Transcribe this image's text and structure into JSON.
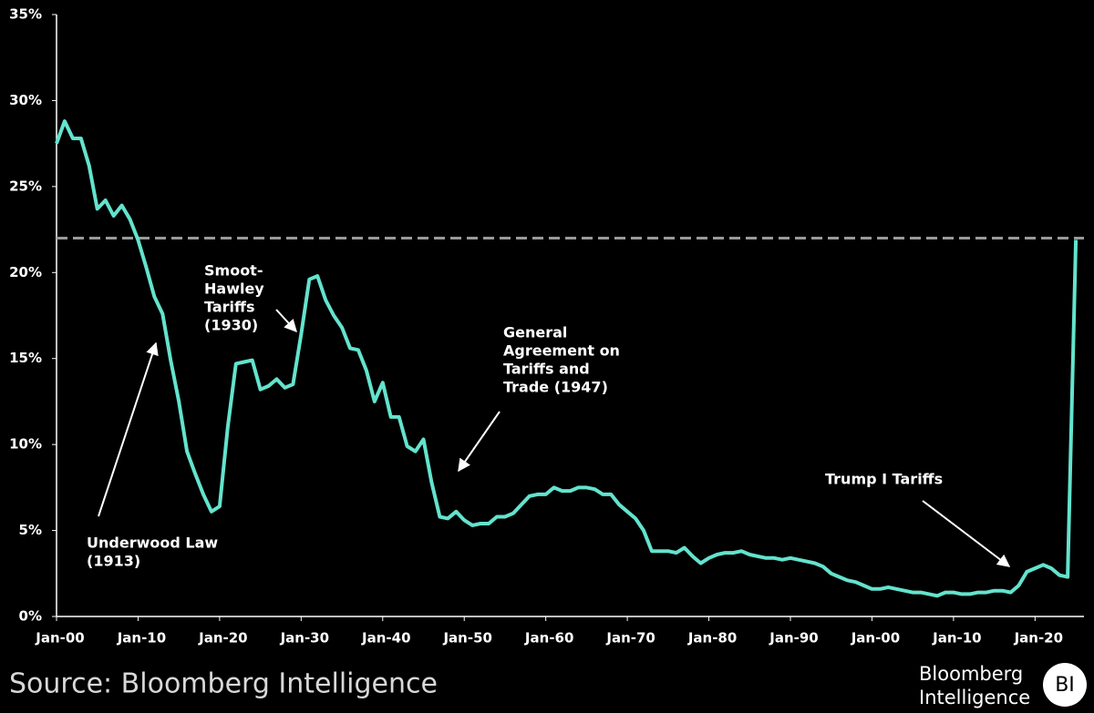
{
  "chart_data": {
    "type": "line",
    "x": [
      1900,
      1901,
      1902,
      1903,
      1904,
      1905,
      1906,
      1907,
      1908,
      1909,
      1910,
      1911,
      1912,
      1913,
      1914,
      1915,
      1916,
      1917,
      1918,
      1919,
      1920,
      1921,
      1922,
      1923,
      1924,
      1925,
      1926,
      1927,
      1928,
      1929,
      1930,
      1931,
      1932,
      1933,
      1934,
      1935,
      1936,
      1937,
      1938,
      1939,
      1940,
      1941,
      1942,
      1943,
      1944,
      1945,
      1946,
      1947,
      1948,
      1949,
      1950,
      1951,
      1952,
      1953,
      1954,
      1955,
      1956,
      1957,
      1958,
      1959,
      1960,
      1961,
      1962,
      1963,
      1964,
      1965,
      1966,
      1967,
      1968,
      1969,
      1970,
      1971,
      1972,
      1973,
      1974,
      1975,
      1976,
      1977,
      1978,
      1979,
      1980,
      1981,
      1982,
      1983,
      1984,
      1985,
      1986,
      1987,
      1988,
      1989,
      1990,
      1991,
      1992,
      1993,
      1994,
      1995,
      1996,
      1997,
      1998,
      1999,
      2000,
      2001,
      2002,
      2003,
      2004,
      2005,
      2006,
      2007,
      2008,
      2009,
      2010,
      2011,
      2012,
      2013,
      2014,
      2015,
      2016,
      2017,
      2018,
      2019,
      2020,
      2021,
      2022,
      2023,
      2024,
      2025
    ],
    "series": [
      {
        "color": "#63e3cd",
        "values": [
          27.5,
          28.8,
          27.8,
          27.8,
          26.2,
          23.7,
          24.2,
          23.3,
          23.9,
          23.1,
          21.9,
          20.3,
          18.6,
          17.6,
          14.9,
          12.5,
          9.6,
          8.3,
          7.1,
          6.1,
          6.4,
          11.0,
          14.7,
          14.8,
          14.9,
          13.2,
          13.4,
          13.8,
          13.3,
          13.5,
          16.4,
          19.6,
          19.8,
          18.4,
          17.5,
          16.8,
          15.6,
          15.5,
          14.3,
          12.5,
          13.6,
          11.6,
          11.6,
          9.9,
          9.6,
          10.3,
          7.8,
          5.8,
          5.7,
          6.1,
          5.6,
          5.3,
          5.4,
          5.4,
          5.8,
          5.8,
          6.0,
          6.5,
          7.0,
          7.1,
          7.1,
          7.5,
          7.3,
          7.3,
          7.5,
          7.5,
          7.4,
          7.1,
          7.1,
          6.5,
          6.1,
          5.7,
          5.0,
          3.8,
          3.8,
          3.8,
          3.7,
          4.0,
          3.5,
          3.1,
          3.4,
          3.6,
          3.7,
          3.7,
          3.8,
          3.6,
          3.5,
          3.4,
          3.4,
          3.3,
          3.4,
          3.3,
          3.2,
          3.1,
          2.9,
          2.5,
          2.3,
          2.1,
          2.0,
          1.8,
          1.6,
          1.6,
          1.7,
          1.6,
          1.5,
          1.4,
          1.4,
          1.3,
          1.2,
          1.4,
          1.4,
          1.3,
          1.3,
          1.4,
          1.4,
          1.5,
          1.5,
          1.4,
          1.8,
          2.6,
          2.8,
          3.0,
          2.8,
          2.4,
          2.3,
          21.9
        ]
      }
    ],
    "xlim": [
      1900,
      2026
    ],
    "xticks": [
      {
        "value": 1900,
        "label": "Jan-00"
      },
      {
        "value": 1910,
        "label": "Jan-10"
      },
      {
        "value": 1920,
        "label": "Jan-20"
      },
      {
        "value": 1930,
        "label": "Jan-30"
      },
      {
        "value": 1940,
        "label": "Jan-40"
      },
      {
        "value": 1950,
        "label": "Jan-50"
      },
      {
        "value": 1960,
        "label": "Jan-60"
      },
      {
        "value": 1970,
        "label": "Jan-70"
      },
      {
        "value": 1980,
        "label": "Jan-80"
      },
      {
        "value": 1990,
        "label": "Jan-90"
      },
      {
        "value": 2000,
        "label": "Jan-00"
      },
      {
        "value": 2010,
        "label": "Jan-10"
      },
      {
        "value": 2020,
        "label": "Jan-20"
      }
    ],
    "ylim": [
      0,
      35
    ],
    "yticks": [
      {
        "value": 0,
        "label": "0%"
      },
      {
        "value": 5,
        "label": "5%"
      },
      {
        "value": 10,
        "label": "10%"
      },
      {
        "value": 15,
        "label": "15%"
      },
      {
        "value": 20,
        "label": "20%"
      },
      {
        "value": 25,
        "label": "25%"
      },
      {
        "value": 30,
        "label": "30%"
      },
      {
        "value": 35,
        "label": "35%"
      }
    ],
    "reference_line": {
      "value": 22,
      "color": "#9a9a9a"
    },
    "annotations": [
      {
        "lines": [
          "Underwood Law",
          "(1913)"
        ]
      },
      {
        "lines": [
          "Smoot-",
          "Hawley",
          "Tariffs",
          "(1930)"
        ]
      },
      {
        "lines": [
          "General",
          "Agreement on",
          "Tariffs and",
          "Trade (1947)"
        ]
      },
      {
        "lines": [
          "Trump I Tariffs"
        ]
      }
    ],
    "source": "Source: Bloomberg Intelligence",
    "logo": {
      "lines": [
        "Bloomberg",
        "Intelligence"
      ],
      "badge": "BI"
    }
  }
}
